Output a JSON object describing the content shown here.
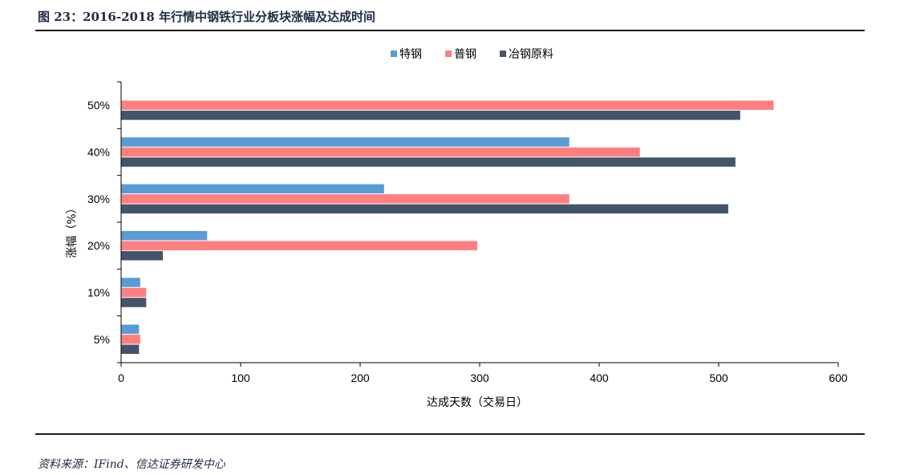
{
  "figure": {
    "title": "图 23：2016-2018 年行情中钢铁行业分板块涨幅及达成时间",
    "source": "资料来源：IFind、信达证券研发中心"
  },
  "chart_data": {
    "type": "bar",
    "orientation": "horizontal",
    "categories": [
      "50%",
      "40%",
      "30%",
      "20%",
      "10%",
      "5%"
    ],
    "series": [
      {
        "name": "特钢",
        "color": "#5b9bd5",
        "values": [
          null,
          375,
          220,
          72,
          16,
          15
        ]
      },
      {
        "name": "普钢",
        "color": "#ff7f7f",
        "values": [
          546,
          434,
          375,
          298,
          21,
          16
        ]
      },
      {
        "name": "冶钢原料",
        "color": "#44546a",
        "values": [
          518,
          514,
          508,
          35,
          21,
          15
        ]
      }
    ],
    "xlabel": "达成天数（交易日）",
    "ylabel": "涨幅（%）",
    "xlim": [
      0,
      600
    ],
    "xticks": [
      "0",
      "100",
      "200",
      "300",
      "400",
      "500",
      "600"
    ],
    "legend_position": "top-center",
    "grid": false
  }
}
